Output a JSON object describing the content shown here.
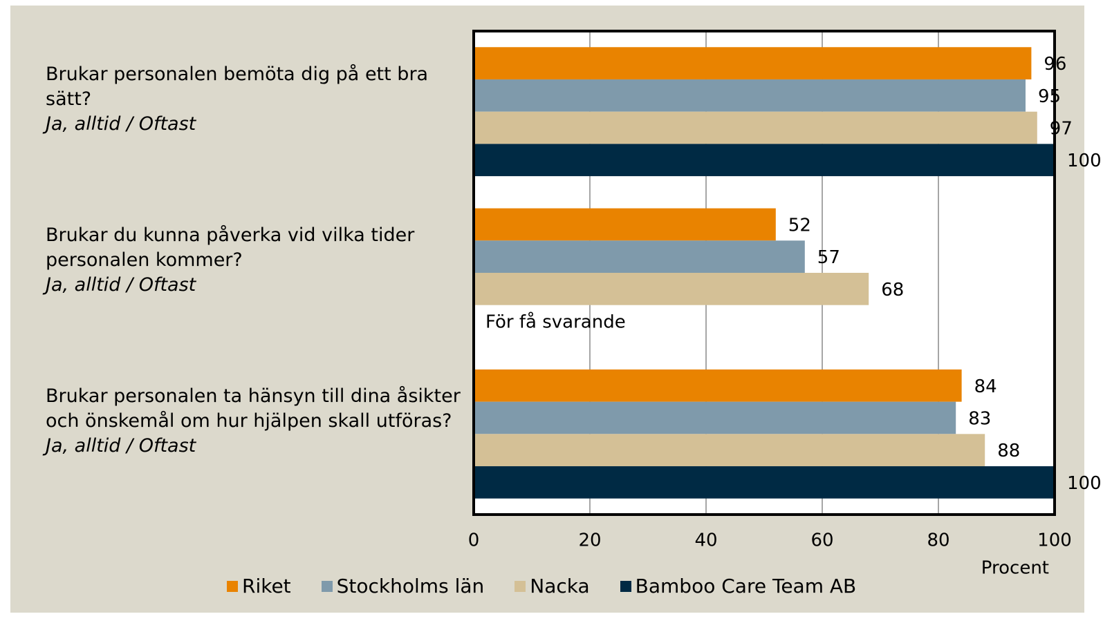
{
  "chart_data": {
    "type": "bar",
    "orientation": "horizontal",
    "categories": [
      "Brukar personalen bemöta dig på ett bra sätt?",
      "Brukar du kunna påverka vid vilka tider personalen kommer?",
      "Brukar personalen ta hänsyn till dina åsikter och önskemål om hur hjälpen skall utföras?"
    ],
    "category_notes": [
      "Ja, alltid / Oftast",
      "Ja, alltid / Oftast",
      "Ja, alltid / Oftast"
    ],
    "series": [
      {
        "name": "Riket",
        "color": "#e98300",
        "values": [
          96,
          52,
          84
        ]
      },
      {
        "name": "Stockholms län",
        "color": "#7f9aab",
        "values": [
          95,
          57,
          83
        ]
      },
      {
        "name": "Nacka",
        "color": "#d4c096",
        "values": [
          97,
          68,
          88
        ]
      },
      {
        "name": "Bamboo Care Team AB",
        "color": "#002a44",
        "values": [
          100,
          null,
          100
        ]
      }
    ],
    "annotation": "För få svarande",
    "xlabel": "Procent",
    "xlim": [
      0,
      100
    ],
    "xticks": [
      0,
      20,
      40,
      60,
      80,
      100
    ],
    "grid": true,
    "legend": "bottom"
  }
}
